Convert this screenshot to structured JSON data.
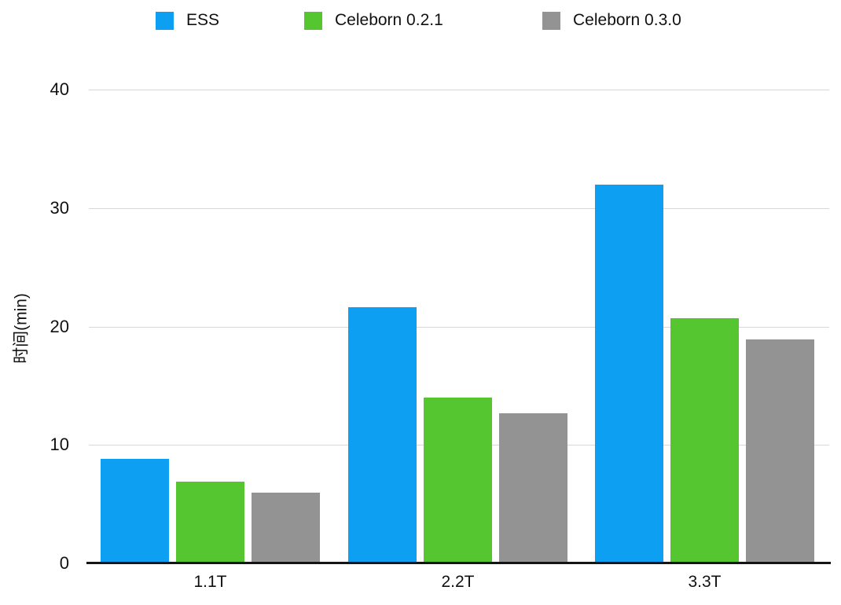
{
  "chart_data": {
    "type": "bar",
    "title": "",
    "categories": [
      "1.1T",
      "2.2T",
      "3.3T"
    ],
    "series": [
      {
        "name": "ESS",
        "color": "#0c9ff2",
        "values": [
          8.8,
          21.6,
          32.0
        ]
      },
      {
        "name": "Celeborn 0.2.1",
        "color": "#55c62f",
        "values": [
          6.9,
          14.0,
          20.7
        ]
      },
      {
        "name": "Celeborn 0.3.0",
        "color": "#939393",
        "values": [
          6.0,
          12.7,
          18.9
        ]
      }
    ],
    "xlabel": "",
    "ylabel": "时间(min)",
    "ylim": [
      0,
      40
    ],
    "yticks": [
      0,
      10,
      20,
      30,
      40
    ],
    "grid": true,
    "legend_position": "top",
    "colors": {
      "gridline": "#d7d7d7",
      "axis_line": "#141414",
      "text": "#111111",
      "background": "#ffffff"
    }
  }
}
